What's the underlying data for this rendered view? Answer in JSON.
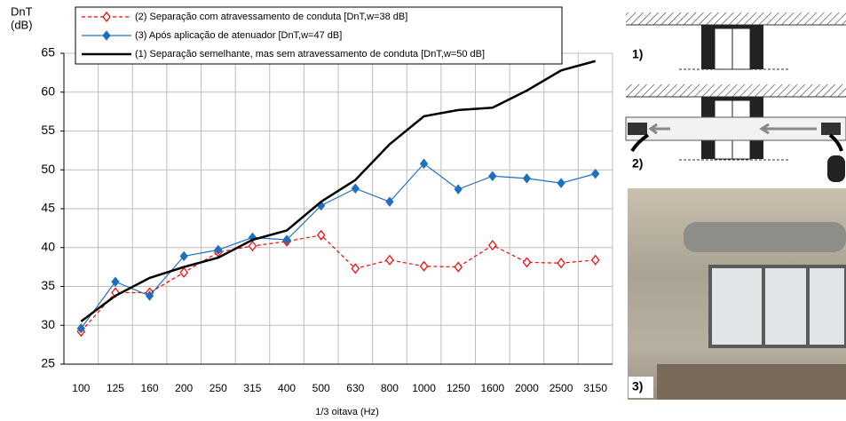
{
  "chart_data": {
    "type": "line",
    "ylabel": [
      "DnT",
      "(dB)"
    ],
    "xlabel": "1/3 oitava (Hz)",
    "categories": [
      "100",
      "125",
      "160",
      "200",
      "250",
      "315",
      "400",
      "500",
      "630",
      "800",
      "1000",
      "1250",
      "1600",
      "2000",
      "2500",
      "3150"
    ],
    "series": [
      {
        "name": "(2) Separação com atravessamento de conduta [DnT,w=38 dB]",
        "color": "#ff0000",
        "marker": "hollow-diamond",
        "dash": true,
        "values": [
          29.2,
          34.2,
          34.2,
          36.8,
          39.4,
          40.2,
          40.8,
          41.6,
          37.3,
          38.4,
          37.6,
          37.5,
          40.3,
          38.1,
          38.0,
          38.4
        ]
      },
      {
        "name": "(3) Após aplicação de atenuador [DnT,w=47 dB]",
        "color": "#1f6fc0",
        "marker": "diamond",
        "dash": false,
        "values": [
          29.6,
          35.6,
          33.8,
          38.9,
          39.7,
          41.3,
          41.0,
          45.4,
          47.6,
          45.9,
          50.8,
          47.5,
          49.2,
          48.9,
          48.3,
          49.5
        ]
      },
      {
        "name": "(1) Separação semelhante, mas sem atravessamento de conduta [DnT,w=50 dB]",
        "color": "#000000",
        "marker": "none",
        "dash": false,
        "values": [
          30.5,
          33.8,
          36.1,
          37.5,
          38.7,
          41.0,
          42.2,
          45.9,
          48.7,
          53.3,
          56.9,
          57.7,
          58.0,
          60.2,
          62.8,
          64.0
        ]
      }
    ],
    "ylim": [
      25,
      65
    ],
    "yticks": [
      25,
      30,
      35,
      40,
      45,
      50,
      55,
      60,
      65
    ],
    "grid": true,
    "legend": "top"
  },
  "side_panels": {
    "labels": [
      "1)",
      "2)",
      "3)"
    ]
  }
}
